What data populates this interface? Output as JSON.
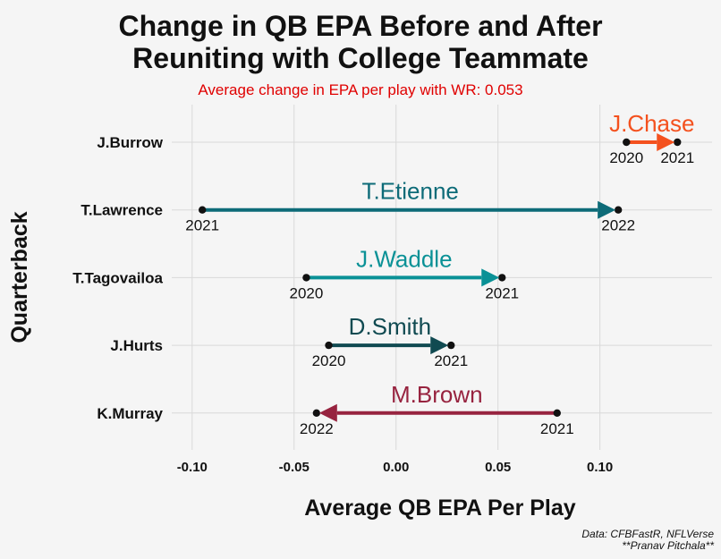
{
  "chart_data": {
    "type": "dumbbell-arrow",
    "title_lines": [
      "Change in QB EPA Before and After",
      "Reuniting with College Teammate"
    ],
    "subtitle": "Average change in EPA per play with WR: 0.053",
    "xlabel": "Average QB EPA Per Play",
    "ylabel": "Quarterback",
    "xlim": [
      -0.11,
      0.155
    ],
    "x_ticks": [
      -0.1,
      -0.05,
      0.0,
      0.05,
      0.1
    ],
    "x_tick_labels": [
      "-0.10",
      "-0.05",
      "0.00",
      "0.05",
      "0.10"
    ],
    "grid": true,
    "caption_lines": [
      "Data: CFBFastR, NFLVerse",
      "**Pranav Pitchala**"
    ],
    "rows": [
      {
        "qb": "J.Burrow",
        "wr": "J.Chase",
        "from_year": "2020",
        "to_year": "2021",
        "from": 0.113,
        "to": 0.138,
        "color": "#f4511e"
      },
      {
        "qb": "T.Lawrence",
        "wr": "T.Etienne",
        "from_year": "2021",
        "to_year": "2022",
        "from": -0.095,
        "to": 0.109,
        "color": "#0d6b78"
      },
      {
        "qb": "T.Tagovailoa",
        "wr": "J.Waddle",
        "from_year": "2020",
        "to_year": "2021",
        "from": -0.044,
        "to": 0.052,
        "color": "#0a9196"
      },
      {
        "qb": "J.Hurts",
        "wr": "D.Smith",
        "from_year": "2020",
        "to_year": "2021",
        "from": -0.033,
        "to": 0.027,
        "color": "#104a51"
      },
      {
        "qb": "K.Murray",
        "wr": "M.Brown",
        "from_year": "2021",
        "to_year": "2022",
        "from": 0.079,
        "to": -0.039,
        "color": "#97233f"
      }
    ]
  },
  "colors": {
    "background": "#f5f5f5",
    "grid": "#d9d9d9",
    "subtitle": "#e00000",
    "point": "#111111"
  }
}
